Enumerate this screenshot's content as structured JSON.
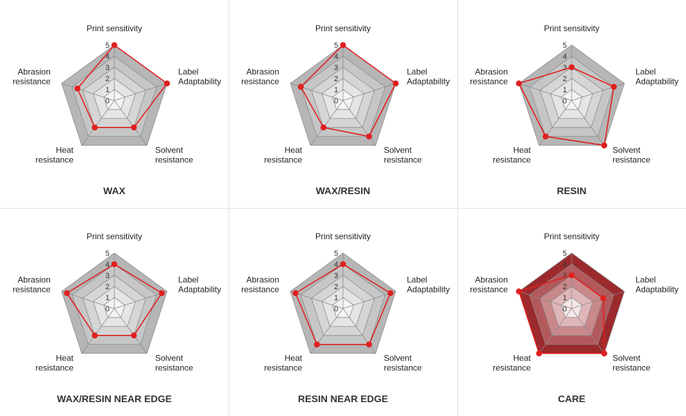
{
  "chart_data": [
    {
      "type": "radar",
      "title": "WAX",
      "axes": [
        "Print sensitivity",
        "Label Adaptability",
        "Solvent resistance",
        "Heat resistance",
        "Abrasion resistance"
      ],
      "axis_label_lines": [
        [
          "Print sensitivity"
        ],
        [
          "Label",
          "Adaptability"
        ],
        [
          "Solvent",
          "resistance"
        ],
        [
          "Heat",
          "resistance"
        ],
        [
          "Abrasion",
          "resistance"
        ]
      ],
      "ticks": [
        "0",
        "1",
        "2",
        "3",
        "4",
        "5"
      ],
      "range": [
        0,
        5
      ],
      "values": [
        5,
        5,
        3,
        3,
        3.5
      ],
      "style": "outline"
    },
    {
      "type": "radar",
      "title": "WAX/RESIN",
      "axes": [
        "Print sensitivity",
        "Label Adaptability",
        "Solvent resistance",
        "Heat resistance",
        "Abrasion resistance"
      ],
      "axis_label_lines": [
        [
          "Print sensitivity"
        ],
        [
          "Label",
          "Adaptability"
        ],
        [
          "Solvent",
          "resistance"
        ],
        [
          "Heat",
          "resistance"
        ],
        [
          "Abrasion",
          "resistance"
        ]
      ],
      "ticks": [
        "0",
        "1",
        "2",
        "3",
        "4",
        "5"
      ],
      "range": [
        0,
        5
      ],
      "values": [
        5,
        5,
        4,
        3,
        4
      ],
      "style": "outline"
    },
    {
      "type": "radar",
      "title": "RESIN",
      "axes": [
        "Print sensitivity",
        "Label Adaptability",
        "Solvent resistance",
        "Heat resistance",
        "Abrasion resistance"
      ],
      "axis_label_lines": [
        [
          "Print sensitivity"
        ],
        [
          "Label",
          "Adaptability"
        ],
        [
          "Solvent",
          "resistance"
        ],
        [
          "Heat",
          "resistance"
        ],
        [
          "Abrasion",
          "resistance"
        ]
      ],
      "ticks": [
        "0",
        "1",
        "2",
        "3",
        "4",
        "5"
      ],
      "range": [
        0,
        5
      ],
      "values": [
        3,
        4,
        5,
        4,
        5
      ],
      "style": "outline"
    },
    {
      "type": "radar",
      "title": "WAX/RESIN NEAR EDGE",
      "axes": [
        "Print sensitivity",
        "Label Adaptability",
        "Solvent resistance",
        "Heat resistance",
        "Abrasion resistance"
      ],
      "axis_label_lines": [
        [
          "Print sensitivity"
        ],
        [
          "Label",
          "Adaptability"
        ],
        [
          "Solvent",
          "resistance"
        ],
        [
          "Heat",
          "resistance"
        ],
        [
          "Abrasion",
          "resistance"
        ]
      ],
      "ticks": [
        "0",
        "1",
        "2",
        "3",
        "4",
        "5"
      ],
      "range": [
        0,
        5
      ],
      "values": [
        4,
        4.5,
        3,
        3,
        4.5
      ],
      "style": "outline"
    },
    {
      "type": "radar",
      "title": "RESIN NEAR EDGE",
      "axes": [
        "Print sensitivity",
        "Label Adaptability",
        "Solvent resistance",
        "Heat resistance",
        "Abrasion resistance"
      ],
      "axis_label_lines": [
        [
          "Print sensitivity"
        ],
        [
          "Label",
          "Adaptability"
        ],
        [
          "Solvent",
          "resistance"
        ],
        [
          "Heat",
          "resistance"
        ],
        [
          "Abrasion",
          "resistance"
        ]
      ],
      "ticks": [
        "0",
        "1",
        "2",
        "3",
        "4",
        "5"
      ],
      "range": [
        0,
        5
      ],
      "values": [
        4,
        4.5,
        4,
        4,
        4.5
      ],
      "style": "outline"
    },
    {
      "type": "radar",
      "title": "CARE",
      "axes": [
        "Print sensitivity",
        "Label Adaptability",
        "Solvent resistance",
        "Heat resistance",
        "Abrasion resistance"
      ],
      "axis_label_lines": [
        [
          "Print sensitivity"
        ],
        [
          "Label",
          "Adaptability"
        ],
        [
          "Solvent",
          "resistance"
        ],
        [
          "Heat",
          "resistance"
        ],
        [
          "Abrasion",
          "resistance"
        ]
      ],
      "ticks": [
        "0",
        "1",
        "2",
        "3",
        "4",
        "5"
      ],
      "range": [
        0,
        5
      ],
      "values": [
        3,
        3,
        5,
        5,
        5
      ],
      "style": "red"
    }
  ],
  "colors": {
    "series_line": "#e02020",
    "series_point": "#e02020",
    "gray_ring_outer": "#b6b6b6",
    "gray_ring_inner": "#f4f4f4",
    "red_ring_outer": "#9c2a2d",
    "red_ring_inner": "#f6e6e7",
    "grid_line": "#8a8a8a",
    "divider": "#e3e3e3"
  }
}
